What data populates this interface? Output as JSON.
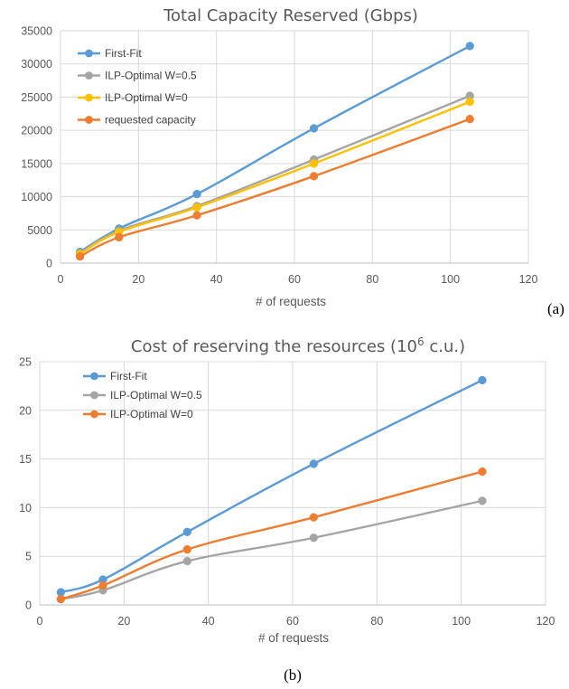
{
  "chart_data": [
    {
      "type": "line",
      "title": "Total Capacity Reserved (Gbps)",
      "xlabel": "# of requests",
      "ylabel": "",
      "panel_label": "(a)",
      "xlim": [
        0,
        120
      ],
      "ylim": [
        0,
        35000
      ],
      "xticks": [
        0,
        20,
        40,
        60,
        80,
        100,
        120
      ],
      "yticks": [
        0,
        5000,
        10000,
        15000,
        20000,
        25000,
        30000,
        35000
      ],
      "grid": true,
      "legend": "top-left",
      "x": [
        5,
        15,
        35,
        65,
        105
      ],
      "series": [
        {
          "name": "First-Fit",
          "color": "#5b9bd5",
          "values": [
            1700,
            5200,
            10400,
            20300,
            32700
          ]
        },
        {
          "name": "ILP-Optimal W=0.5",
          "color": "#a5a5a5",
          "values": [
            1500,
            4900,
            8600,
            15600,
            25200
          ]
        },
        {
          "name": "ILP-Optimal W=0",
          "color": "#ffc000",
          "values": [
            1400,
            4700,
            8400,
            15000,
            24300
          ]
        },
        {
          "name": "requested capacity",
          "color": "#ed7d31",
          "values": [
            1000,
            3900,
            7200,
            13100,
            21700
          ]
        }
      ]
    },
    {
      "type": "line",
      "title_main": "Cost of reserving the resources (10",
      "title_sup": "6",
      "title_tail": " c.u.)",
      "xlabel": "# of requests",
      "ylabel": "",
      "panel_label": "(b)",
      "xlim": [
        0,
        120
      ],
      "ylim": [
        0,
        25
      ],
      "xticks": [
        0,
        20,
        40,
        60,
        80,
        100,
        120
      ],
      "yticks": [
        0,
        5,
        10,
        15,
        20,
        25
      ],
      "grid": true,
      "legend": "top-left",
      "x": [
        5,
        15,
        35,
        65,
        105
      ],
      "series": [
        {
          "name": "First-Fit",
          "color": "#5b9bd5",
          "values": [
            1.3,
            2.6,
            7.5,
            14.5,
            23.1
          ]
        },
        {
          "name": "ILP-Optimal W=0.5",
          "color": "#a5a5a5",
          "values": [
            0.6,
            1.5,
            4.5,
            6.9,
            10.7
          ]
        },
        {
          "name": "ILP-Optimal W=0",
          "color": "#ed7d31",
          "values": [
            0.6,
            2.0,
            5.7,
            9.0,
            13.7
          ]
        }
      ]
    }
  ]
}
